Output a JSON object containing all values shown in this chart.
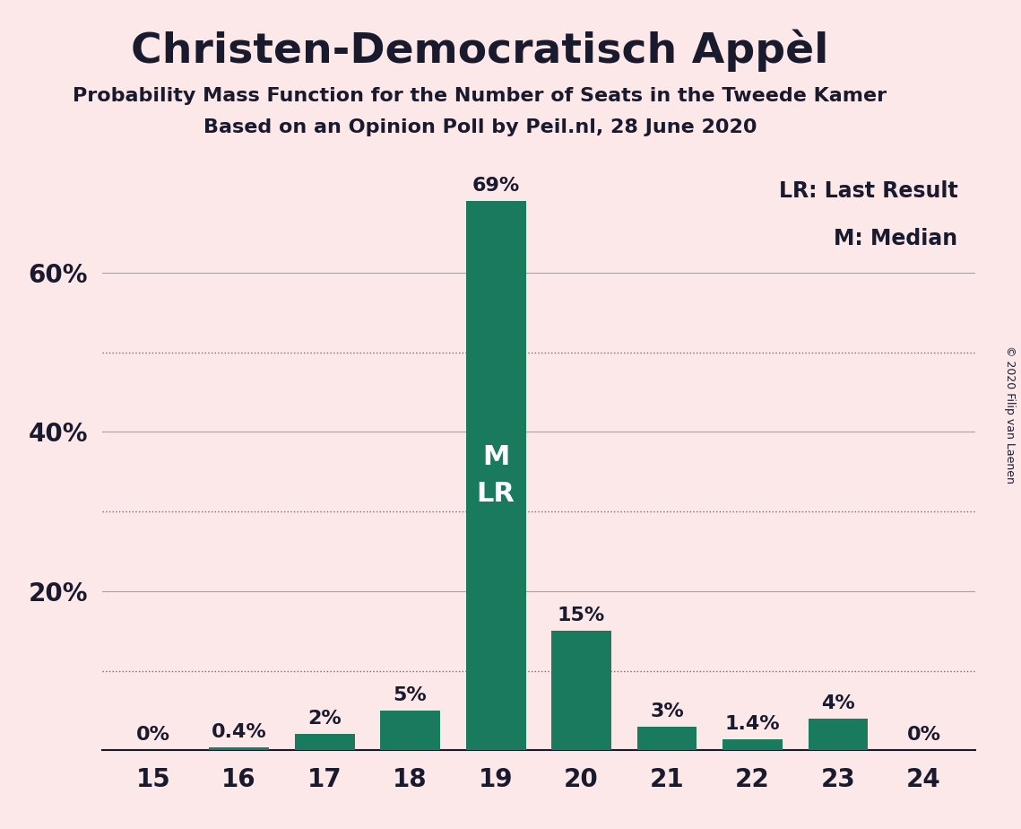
{
  "title": "Christen-Democratisch Appèl",
  "subtitle1": "Probability Mass Function for the Number of Seats in the Tweede Kamer",
  "subtitle2": "Based on an Opinion Poll by Peil.nl, 28 June 2020",
  "copyright": "© 2020 Filip van Laenen",
  "legend_line1": "LR: Last Result",
  "legend_line2": "M: Median",
  "categories": [
    15,
    16,
    17,
    18,
    19,
    20,
    21,
    22,
    23,
    24
  ],
  "values": [
    0.0,
    0.4,
    2.0,
    5.0,
    69.0,
    15.0,
    3.0,
    1.4,
    4.0,
    0.0
  ],
  "labels": [
    "0%",
    "0.4%",
    "2%",
    "5%",
    "69%",
    "15%",
    "3%",
    "1.4%",
    "4%",
    "0%"
  ],
  "bar_color": "#1a7a5e",
  "background_color": "#fce8e8",
  "title_color": "#1a1a2e",
  "text_color": "#1a1a2e",
  "median_seat": 19,
  "last_result_seat": 19,
  "bar_label_color_inside": "#ffffff",
  "bar_label_color_outside": "#1a1a2e",
  "ylim": [
    0,
    75
  ],
  "ytick_positions": [
    20,
    40,
    60
  ],
  "ytick_labels": [
    "20%",
    "40%",
    "60%"
  ],
  "grid_dotted_values": [
    10,
    30,
    50
  ],
  "grid_solid_values": [
    20,
    40,
    60
  ]
}
